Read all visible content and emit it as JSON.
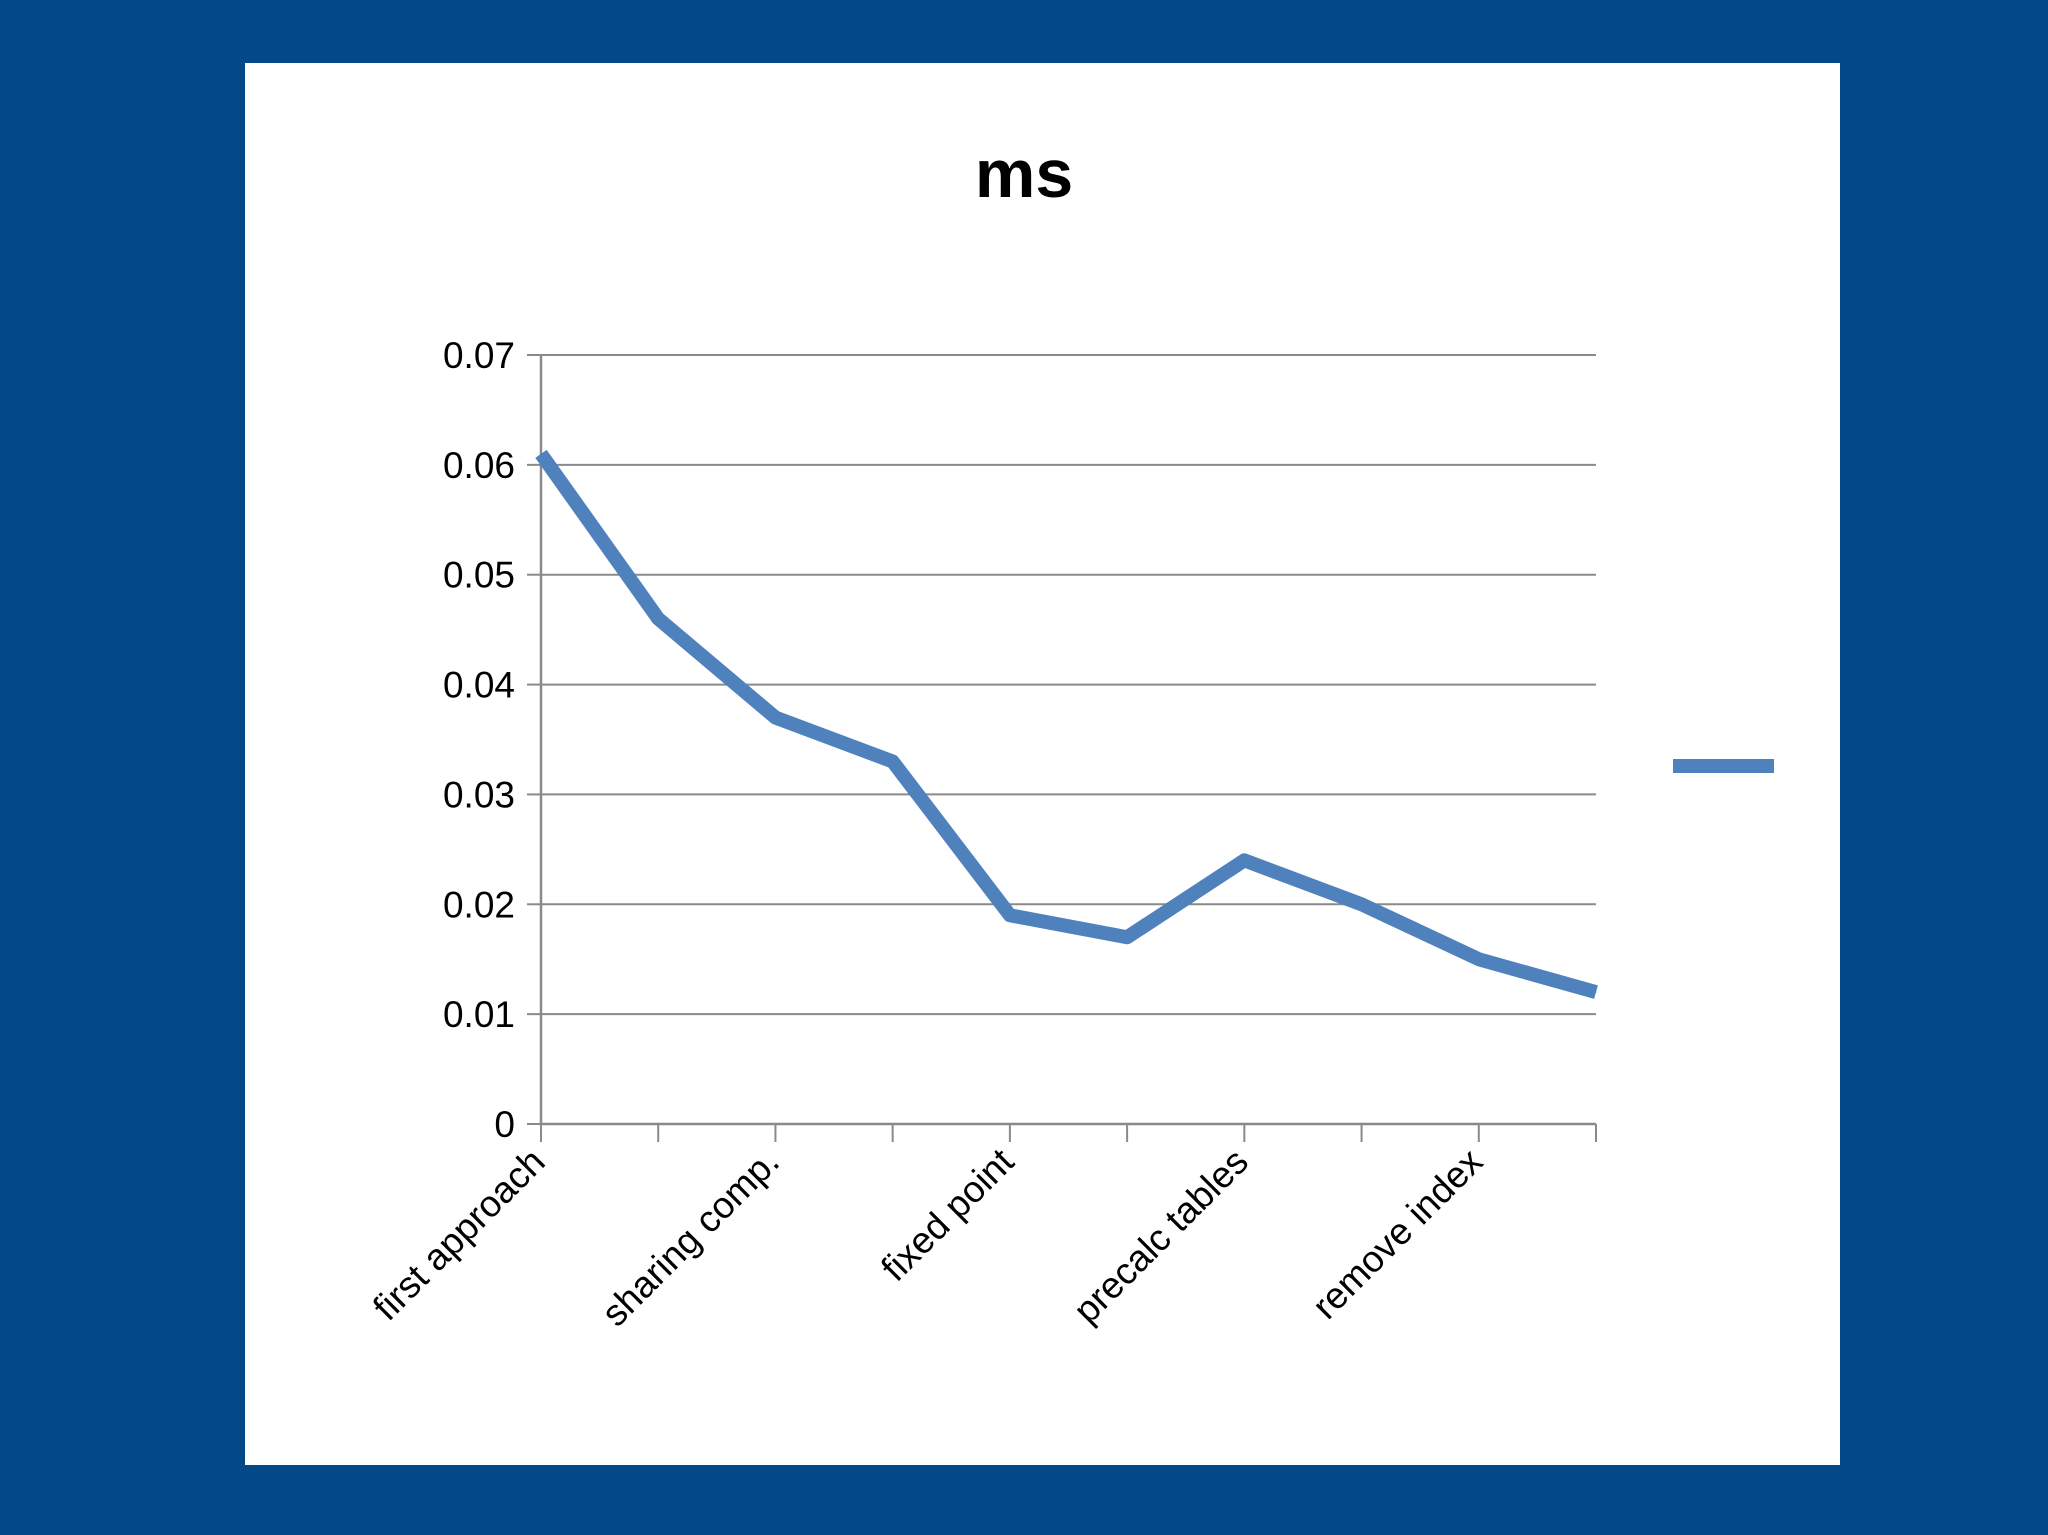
{
  "background_color": "#034887",
  "panel_color": "#ffffff",
  "chart_data": {
    "type": "line",
    "title": "ms",
    "xlabel": "",
    "ylabel": "",
    "categories": [
      "first approach",
      "",
      "sharing comp.",
      "",
      "fixed point",
      "",
      "precalc tables",
      "",
      "remove index",
      ""
    ],
    "y_ticks": [
      "0",
      "0.01",
      "0.02",
      "0.03",
      "0.04",
      "0.05",
      "0.06",
      "0.07"
    ],
    "ylim": [
      0,
      0.07
    ],
    "grid": true,
    "legend_position": "right",
    "series": [
      {
        "name": "",
        "color": "#4f81bd",
        "values": [
          0.061,
          0.046,
          0.037,
          0.033,
          0.019,
          0.017,
          0.024,
          0.02,
          0.015,
          0.012
        ]
      }
    ]
  }
}
